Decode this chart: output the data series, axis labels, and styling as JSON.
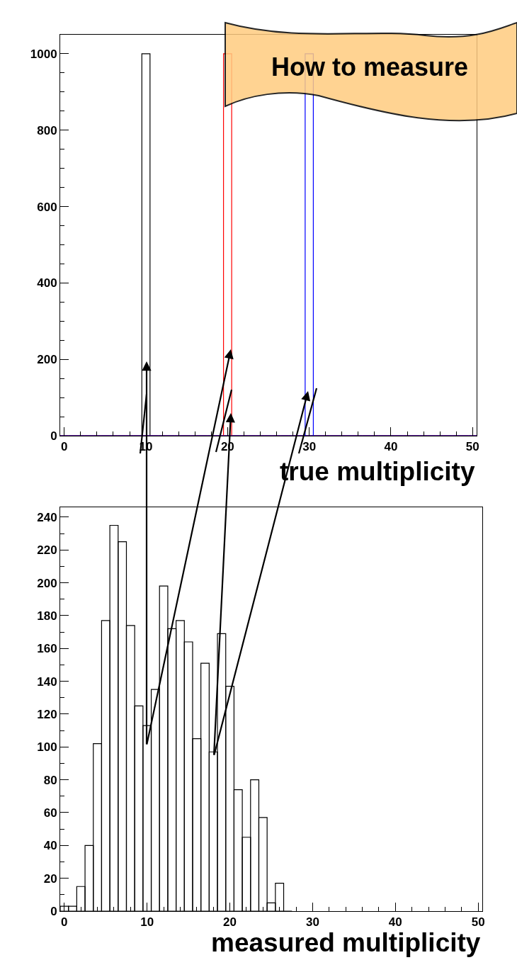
{
  "chart_data": [
    {
      "type": "histogram",
      "xlabel": "true multiplicity",
      "annotations": [
        "How to measure"
      ],
      "bins": [
        -0.5,
        0.5,
        1.5,
        2.5,
        3.5,
        4.5,
        5.5,
        6.5,
        7.5,
        8.5,
        9.5,
        10.5,
        11.5,
        12.5,
        13.5,
        14.5,
        15.5,
        16.5,
        17.5,
        18.5,
        19.5,
        20.5,
        21.5,
        22.5,
        23.5,
        24.5,
        25.5,
        26.5,
        27.5,
        28.5,
        29.5,
        30.5,
        31.5,
        32.5,
        33.5,
        34.5,
        35.5,
        36.5,
        37.5,
        38.5,
        39.5,
        40.5,
        41.5,
        42.5,
        43.5,
        44.5,
        45.5,
        46.5,
        47.5,
        48.5,
        49.5,
        50.5
      ],
      "series": [
        {
          "color": "#000000",
          "values": [
            0,
            0,
            0,
            0,
            0,
            0,
            0,
            0,
            0,
            0,
            1000,
            0,
            0,
            0,
            0,
            0,
            0,
            0,
            0,
            0,
            0,
            0,
            0,
            0,
            0,
            0,
            0,
            0,
            0,
            0,
            0,
            0,
            0,
            0,
            0,
            0,
            0,
            0,
            0,
            0,
            0,
            0,
            0,
            0,
            0,
            0,
            0,
            0,
            0,
            0,
            0
          ]
        },
        {
          "color": "#ff0000",
          "values": [
            0,
            0,
            0,
            0,
            0,
            0,
            0,
            0,
            0,
            0,
            0,
            0,
            0,
            0,
            0,
            0,
            0,
            0,
            0,
            0,
            1000,
            0,
            0,
            0,
            0,
            0,
            0,
            0,
            0,
            0,
            0,
            0,
            0,
            0,
            0,
            0,
            0,
            0,
            0,
            0,
            0,
            0,
            0,
            0,
            0,
            0,
            0,
            0,
            0,
            0,
            0
          ]
        },
        {
          "color": "#0000ff",
          "values": [
            0,
            0,
            0,
            0,
            0,
            0,
            0,
            0,
            0,
            0,
            0,
            0,
            0,
            0,
            0,
            0,
            0,
            0,
            0,
            0,
            0,
            0,
            0,
            0,
            0,
            0,
            0,
            0,
            0,
            0,
            1000,
            0,
            0,
            0,
            0,
            0,
            0,
            0,
            0,
            0,
            0,
            0,
            0,
            0,
            0,
            0,
            0,
            0,
            0,
            0,
            0
          ]
        }
      ],
      "xlim": [
        -0.5,
        50.5
      ],
      "xticks": [
        0,
        10,
        20,
        30,
        40,
        50
      ],
      "ylim": [
        0,
        1050
      ],
      "yticks": [
        0,
        200,
        400,
        600,
        800,
        1000
      ]
    },
    {
      "type": "histogram",
      "xlabel": "measured multiplicity",
      "bins": [
        -0.5,
        0.5,
        1.5,
        2.5,
        3.5,
        4.5,
        5.5,
        6.5,
        7.5,
        8.5,
        9.5,
        10.5,
        11.5,
        12.5,
        13.5,
        14.5,
        15.5,
        16.5,
        17.5,
        18.5,
        19.5,
        20.5,
        21.5,
        22.5,
        23.5,
        24.5,
        25.5,
        26.5,
        27.5
      ],
      "series": [
        {
          "color": "#000000",
          "values": [
            3,
            3,
            15,
            40,
            102,
            177,
            235,
            225,
            174,
            125,
            113,
            135,
            198,
            172,
            177,
            164,
            105,
            151,
            97,
            169,
            137,
            74,
            45,
            80,
            57,
            5,
            17,
            0
          ]
        }
      ],
      "xlim": [
        -0.5,
        50.5
      ],
      "xticks": [
        0,
        10,
        20,
        30,
        40,
        50
      ],
      "ylim": [
        0,
        246
      ],
      "yticks": [
        0,
        20,
        40,
        60,
        80,
        100,
        120,
        140,
        160,
        180,
        200,
        220,
        240
      ]
    }
  ]
}
